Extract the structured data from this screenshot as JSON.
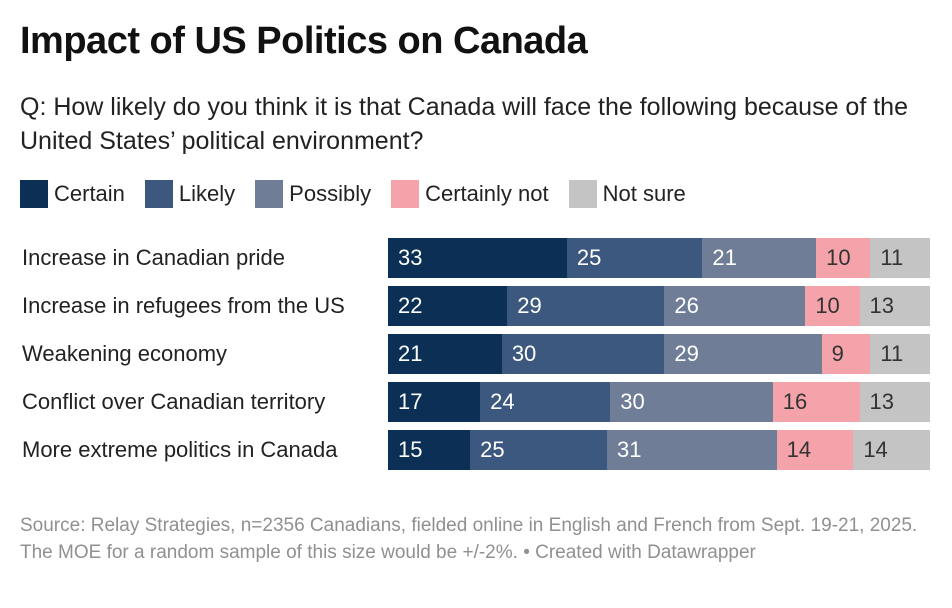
{
  "title": "Impact of US Politics on Canada",
  "subtitle": "Q: How likely do you think it is that Canada will face the following because of the United States’ political environment?",
  "source": "Source: Relay Strategies, n=2356 Canadians, fielded online in English and French from Sept. 19-21, 2025. The MOE for a random sample of this size would be +/-2%. • Created with Datawrapper",
  "chart_data": {
    "type": "bar",
    "orientation": "horizontal-stacked",
    "title": "Impact of US Politics on Canada",
    "categories": [
      "Increase in Canadian pride",
      "Increase in refugees from the US",
      "Weakening economy",
      "Conflict over Canadian territory",
      "More extreme politics in Canada"
    ],
    "series": [
      {
        "name": "Certain",
        "color": "#0b2f55",
        "text_color": "#ffffff",
        "values": [
          33,
          22,
          21,
          17,
          15
        ]
      },
      {
        "name": "Likely",
        "color": "#3c587e",
        "text_color": "#ffffff",
        "values": [
          25,
          29,
          30,
          24,
          25
        ]
      },
      {
        "name": "Possibly",
        "color": "#6f7e96",
        "text_color": "#ffffff",
        "values": [
          21,
          26,
          29,
          30,
          31
        ]
      },
      {
        "name": "Certainly not",
        "color": "#f4a3aa",
        "text_color": "#333333",
        "values": [
          10,
          10,
          9,
          16,
          14
        ]
      },
      {
        "name": "Not sure",
        "color": "#c4c4c4",
        "text_color": "#333333",
        "values": [
          11,
          13,
          11,
          13,
          14
        ]
      }
    ],
    "legend_position": "top-left",
    "grid": false
  }
}
